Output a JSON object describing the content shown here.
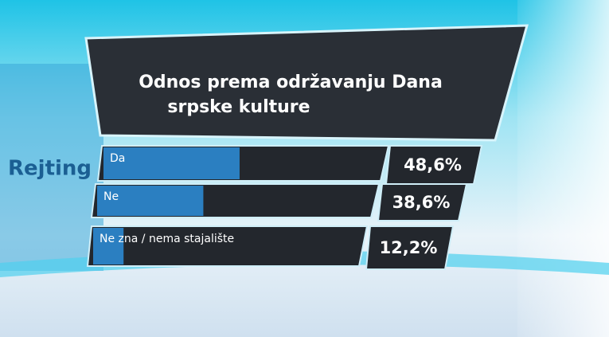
{
  "logo": "Rejting",
  "chart_data": {
    "type": "bar",
    "title": [
      "Odnos prema održavanju Dana",
      "srpske kulture"
    ],
    "categories": [
      "Da",
      "Ne",
      "Ne zna / nema stajalište"
    ],
    "values": [
      48.6,
      38.6,
      12.2
    ],
    "value_labels": [
      "48,6%",
      "38,6%",
      "12,2%"
    ],
    "xlim": [
      0,
      100
    ],
    "color": "#2b7fc1"
  }
}
